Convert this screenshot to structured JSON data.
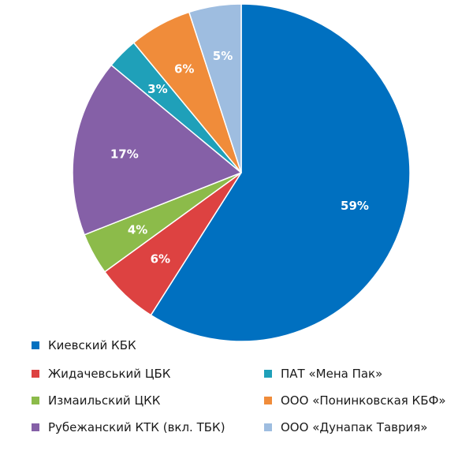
{
  "chart_data": {
    "type": "pie",
    "slices": [
      {
        "label": "Киевский КБК",
        "value": 59,
        "value_label": "59%",
        "color": "#0070C0"
      },
      {
        "label": "Жидачевський ЦБК",
        "value": 6,
        "value_label": "6%",
        "color": "#DD4241"
      },
      {
        "label": "Измаильский ЦКК",
        "value": 4,
        "value_label": "4%",
        "color": "#8CBB4A"
      },
      {
        "label": "Рубежанский КТК (вкл. ТБК)",
        "value": 17,
        "value_label": "17%",
        "color": "#8560A7"
      },
      {
        "label": "ПАТ «Мена Пак»",
        "value": 3,
        "value_label": "3%",
        "color": "#1FA0B9"
      },
      {
        "label": "ООО «Понинковская КБФ»",
        "value": 6,
        "value_label": "6%",
        "color": "#F08C3A"
      },
      {
        "label": "ООО «Дунапак Таврия»",
        "value": 5,
        "value_label": "5%",
        "color": "#9EBDE0"
      }
    ],
    "legend_position": "bottom"
  }
}
